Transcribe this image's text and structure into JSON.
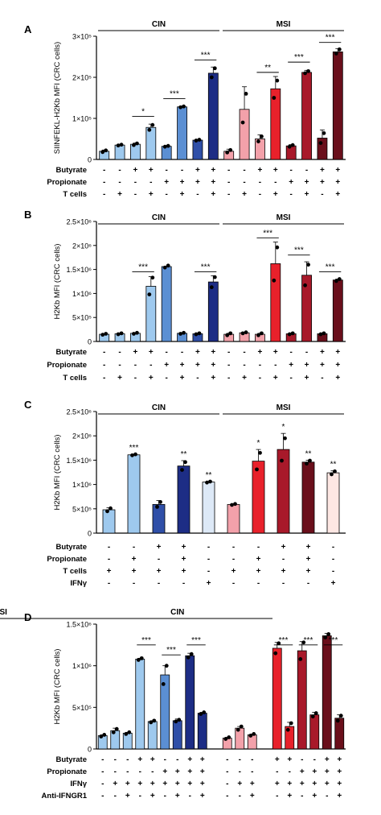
{
  "colors": {
    "cin_light": "#9ec9ee",
    "cin_mid": "#5b8fd3",
    "cin_dark": "#2f4fa8",
    "cin_darkest": "#1d2d85",
    "msi_light": "#f3a1aa",
    "msi_mid": "#e8212b",
    "msi_dark": "#a8192a",
    "msi_darkest": "#6a0f1b",
    "axis": "#000000"
  },
  "chart_data": [
    {
      "panel": "A",
      "type": "bar",
      "ylabel": "SIINFEKL-H2Kb MFI (CRC cells)",
      "yticks": [
        "0",
        "1×10⁵",
        "2×10⁵",
        "3×10⁵"
      ],
      "ylim": [
        0,
        300000
      ],
      "groups": [
        {
          "label": "CIN",
          "start": 0,
          "end": 7
        },
        {
          "label": "MSI",
          "start": 8,
          "end": 15
        }
      ],
      "values": [
        20000,
        35000,
        37000,
        78000,
        32000,
        128000,
        47000,
        210000,
        20000,
        122000,
        50000,
        172000,
        33000,
        212000,
        52000,
        262000
      ],
      "errors": [
        3000,
        2000,
        3000,
        8000,
        2000,
        2000,
        2000,
        15000,
        5000,
        55000,
        10000,
        30000,
        3000,
        5000,
        20000,
        8000
      ],
      "points": [
        [
          18000,
          22000
        ],
        [
          34000,
          36000
        ],
        [
          35000,
          39000
        ],
        [
          72000,
          84000
        ],
        [
          31000,
          33000
        ],
        [
          127000,
          129000
        ],
        [
          46000,
          48000
        ],
        [
          200000,
          222000
        ],
        [
          17000,
          23000
        ],
        [
          90000,
          160000
        ],
        [
          44000,
          56000
        ],
        [
          150000,
          192000
        ],
        [
          31000,
          35000
        ],
        [
          210000,
          215000
        ],
        [
          40000,
          64000
        ],
        [
          258000,
          268000
        ]
      ],
      "colors": [
        "cin_light",
        "cin_light",
        "cin_light",
        "cin_light",
        "cin_mid",
        "cin_mid",
        "cin_dark",
        "cin_darkest",
        "msi_light",
        "msi_light",
        "msi_light",
        "msi_mid",
        "msi_dark",
        "msi_dark",
        "msi_darkest",
        "msi_darkest"
      ],
      "sig": [
        {
          "from": 2,
          "to": 3,
          "label": "*",
          "at": 105000
        },
        {
          "from": 4,
          "to": 5,
          "label": "***",
          "at": 148000
        },
        {
          "from": 6,
          "to": 7,
          "label": "***",
          "at": 242000
        },
        {
          "from": 10,
          "to": 11,
          "label": "**",
          "at": 212000
        },
        {
          "from": 12,
          "to": 13,
          "label": "***",
          "at": 237000
        },
        {
          "from": 14,
          "to": 15,
          "label": "***",
          "at": 285000
        }
      ],
      "rows": [
        {
          "label": "Butyrate",
          "marks": [
            "-",
            "-",
            "+",
            "+",
            "-",
            "-",
            "+",
            "+",
            "-",
            "-",
            "+",
            "+",
            "-",
            "-",
            "+",
            "+"
          ]
        },
        {
          "label": "Propionate",
          "marks": [
            "-",
            "-",
            "-",
            "-",
            "+",
            "+",
            "+",
            "+",
            "-",
            "-",
            "-",
            "-",
            "+",
            "+",
            "+",
            "+"
          ]
        },
        {
          "label": "T cells",
          "marks": [
            "-",
            "+",
            "-",
            "+",
            "-",
            "+",
            "-",
            "+",
            "-",
            "+",
            "-",
            "+",
            "-",
            "+",
            "-",
            "+"
          ]
        }
      ]
    },
    {
      "panel": "B",
      "type": "bar",
      "ylabel": "H2Kb MFI (CRC cells)",
      "yticks": [
        "0",
        "5×10⁵",
        "1×10⁶",
        "1.5×10⁶",
        "2×10⁶",
        "2.5×10⁶"
      ],
      "ylim": [
        0,
        2500000
      ],
      "groups": [
        {
          "label": "CIN",
          "start": 0,
          "end": 7
        },
        {
          "label": "MSI",
          "start": 8,
          "end": 15
        }
      ],
      "values": [
        150000,
        160000,
        170000,
        1150000,
        1560000,
        170000,
        160000,
        1240000,
        150000,
        180000,
        150000,
        1620000,
        160000,
        1380000,
        160000,
        1280000
      ],
      "errors": [
        10000,
        10000,
        10000,
        200000,
        10000,
        10000,
        10000,
        130000,
        20000,
        10000,
        20000,
        450000,
        10000,
        280000,
        10000,
        20000
      ],
      "points": [
        [
          140000,
          160000
        ],
        [
          150000,
          170000
        ],
        [
          160000,
          180000
        ],
        [
          980000,
          1330000
        ],
        [
          1540000,
          1580000
        ],
        [
          160000,
          180000
        ],
        [
          150000,
          170000
        ],
        [
          1130000,
          1340000
        ],
        [
          130000,
          170000
        ],
        [
          170000,
          190000
        ],
        [
          130000,
          170000
        ],
        [
          1270000,
          1960000
        ],
        [
          150000,
          170000
        ],
        [
          1170000,
          1600000
        ],
        [
          150000,
          170000
        ],
        [
          1260000,
          1300000
        ]
      ],
      "colors": [
        "cin_light",
        "cin_light",
        "cin_light",
        "cin_light",
        "cin_mid",
        "cin_mid",
        "cin_dark",
        "cin_darkest",
        "msi_light",
        "msi_light",
        "msi_light",
        "msi_mid",
        "msi_dark",
        "msi_dark",
        "msi_darkest",
        "msi_darkest"
      ],
      "sig": [
        {
          "from": 2,
          "to": 3,
          "label": "***",
          "at": 1450000
        },
        {
          "from": 6,
          "to": 7,
          "label": "***",
          "at": 1450000
        },
        {
          "from": 10,
          "to": 11,
          "label": "***",
          "at": 2160000
        },
        {
          "from": 12,
          "to": 13,
          "label": "***",
          "at": 1800000
        },
        {
          "from": 14,
          "to": 15,
          "label": "***",
          "at": 1450000
        }
      ],
      "rows": [
        {
          "label": "Butyrate",
          "marks": [
            "-",
            "-",
            "+",
            "+",
            "-",
            "-",
            "+",
            "+",
            "-",
            "-",
            "+",
            "+",
            "-",
            "-",
            "+",
            "+"
          ]
        },
        {
          "label": "Propionate",
          "marks": [
            "-",
            "-",
            "-",
            "-",
            "+",
            "+",
            "+",
            "+",
            "-",
            "-",
            "-",
            "-",
            "+",
            "+",
            "+",
            "+"
          ]
        },
        {
          "label": "T cells",
          "marks": [
            "-",
            "+",
            "-",
            "+",
            "-",
            "+",
            "-",
            "+",
            "-",
            "+",
            "-",
            "+",
            "-",
            "+",
            "-",
            "+"
          ]
        }
      ]
    },
    {
      "panel": "C",
      "type": "bar",
      "ylabel": "H2Kb MFI (CRC cells)",
      "yticks": [
        "0",
        "5×10⁵",
        "1×10⁶",
        "1.5×10⁶",
        "2×10⁶",
        "2.5×10⁶"
      ],
      "ylim": [
        0,
        2500000
      ],
      "groups": [
        {
          "label": "CIN",
          "start": 0,
          "end": 4
        },
        {
          "label": "MSI",
          "start": 5,
          "end": 9
        }
      ],
      "values": [
        480000,
        1610000,
        590000,
        1380000,
        1050000,
        590000,
        1480000,
        1720000,
        1460000,
        1240000
      ],
      "errors": [
        40000,
        10000,
        80000,
        110000,
        10000,
        10000,
        240000,
        330000,
        40000,
        40000
      ],
      "points": [
        [
          450000,
          510000
        ],
        [
          1600000,
          1620000
        ],
        [
          540000,
          640000
        ],
        [
          1300000,
          1460000
        ],
        [
          1040000,
          1060000
        ],
        [
          580000,
          600000
        ],
        [
          1310000,
          1650000
        ],
        [
          1490000,
          1950000
        ],
        [
          1430000,
          1490000
        ],
        [
          1210000,
          1270000
        ]
      ],
      "colors": [
        "cin_light",
        "cin_light",
        "cin_dark",
        "cin_darkest",
        "cin_lightest",
        "msi_light",
        "msi_mid",
        "msi_dark",
        "msi_darkest",
        "msi_lightest"
      ],
      "stars": [
        "",
        "***",
        "",
        "**",
        "**",
        "",
        "*",
        "*",
        "**",
        "**"
      ],
      "rows": [
        {
          "label": "Butyrate",
          "marks": [
            "-",
            "-",
            "+",
            "+",
            "-",
            "-",
            "-",
            "+",
            "+",
            "-"
          ]
        },
        {
          "label": "Propionate",
          "marks": [
            "-",
            "+",
            "-",
            "+",
            "-",
            "-",
            "+",
            "-",
            "+",
            "-"
          ]
        },
        {
          "label": "T cells",
          "marks": [
            "+",
            "+",
            "+",
            "+",
            "-",
            "+",
            "+",
            "+",
            "+",
            "-"
          ]
        },
        {
          "label": "IFNγ",
          "marks": [
            "-",
            "-",
            "-",
            "-",
            "+",
            "-",
            "-",
            "-",
            "-",
            "+"
          ]
        }
      ]
    },
    {
      "panel": "D",
      "type": "bar",
      "ylabel": "H2Kb MFI (CRC cells)",
      "yticks": [
        "0",
        "5×10⁵",
        "1×10⁶",
        "1.5×10⁶"
      ],
      "ylim": [
        0,
        1500000
      ],
      "groups": [
        {
          "label": "CIN",
          "start": 0,
          "end": 11
        },
        {
          "label": "MSI",
          "start": 12,
          "end": 23
        }
      ],
      "values": [
        160000,
        220000,
        190000,
        1080000,
        330000,
        890000,
        340000,
        1120000,
        430000,
        130000,
        250000,
        170000,
        1210000,
        270000,
        1180000,
        410000,
        1360000,
        370000
      ],
      "errors": [
        10000,
        30000,
        10000,
        10000,
        10000,
        110000,
        20000,
        30000,
        10000,
        10000,
        20000,
        10000,
        70000,
        50000,
        110000,
        30000,
        30000,
        40000
      ],
      "points": [
        [
          150000,
          170000
        ],
        [
          200000,
          240000
        ],
        [
          180000,
          200000
        ],
        [
          1070000,
          1090000
        ],
        [
          320000,
          340000
        ],
        [
          780000,
          1000000
        ],
        [
          330000,
          350000
        ],
        [
          1100000,
          1140000
        ],
        [
          420000,
          440000
        ],
        [
          120000,
          140000
        ],
        [
          230000,
          270000
        ],
        [
          160000,
          180000
        ],
        [
          1150000,
          1270000
        ],
        [
          230000,
          310000
        ],
        [
          1080000,
          1280000
        ],
        [
          390000,
          430000
        ],
        [
          1340000,
          1380000
        ],
        [
          340000,
          400000
        ]
      ],
      "slots": [
        0,
        1,
        2,
        3,
        4,
        5,
        6,
        7,
        8,
        10,
        11,
        12,
        14,
        15,
        16,
        17,
        18,
        19
      ],
      "colors": [
        "cin_light",
        "cin_light",
        "cin_light",
        "cin_light",
        "cin_light",
        "cin_mid",
        "cin_dark",
        "cin_darkest",
        "cin_darkest",
        "msi_light",
        "msi_light",
        "msi_light",
        "msi_mid",
        "msi_mid",
        "msi_dark",
        "msi_dark",
        "msi_darkest",
        "msi_darkest"
      ],
      "sig": [
        {
          "from": 3,
          "to": 4,
          "label": "***",
          "at": 1250000
        },
        {
          "from": 5,
          "to": 6,
          "label": "***",
          "at": 1130000
        },
        {
          "from": 7,
          "to": 8,
          "label": "***",
          "at": 1250000
        },
        {
          "from": 12,
          "to": 13,
          "label": "***",
          "at": 1250000
        },
        {
          "from": 14,
          "to": 15,
          "label": "***",
          "at": 1250000
        },
        {
          "from": 16,
          "to": 17,
          "label": "***",
          "at": 1250000
        }
      ],
      "rows": [
        {
          "label": "Butyrate",
          "marks": [
            "-",
            "-",
            "-",
            "+",
            "+",
            "-",
            "-",
            "+",
            "+",
            "-",
            "-",
            "-",
            "+",
            "+",
            "-",
            "-",
            "+",
            "+"
          ]
        },
        {
          "label": "Propionate",
          "marks": [
            "-",
            "-",
            "-",
            "-",
            "-",
            "+",
            "+",
            "+",
            "+",
            "-",
            "-",
            "-",
            "-",
            "-",
            "+",
            "+",
            "+",
            "+"
          ]
        },
        {
          "label": "IFNγ",
          "marks": [
            "-",
            "+",
            "+",
            "+",
            "+",
            "+",
            "+",
            "+",
            "+",
            "-",
            "+",
            "+",
            "+",
            "+",
            "+",
            "+",
            "+",
            "+"
          ]
        },
        {
          "label": "Anti-IFNGR1",
          "marks": [
            "-",
            "-",
            "+",
            "-",
            "+",
            "-",
            "+",
            "-",
            "+",
            "-",
            "-",
            "+",
            "-",
            "+",
            "-",
            "+",
            "-",
            "+"
          ]
        }
      ]
    }
  ]
}
